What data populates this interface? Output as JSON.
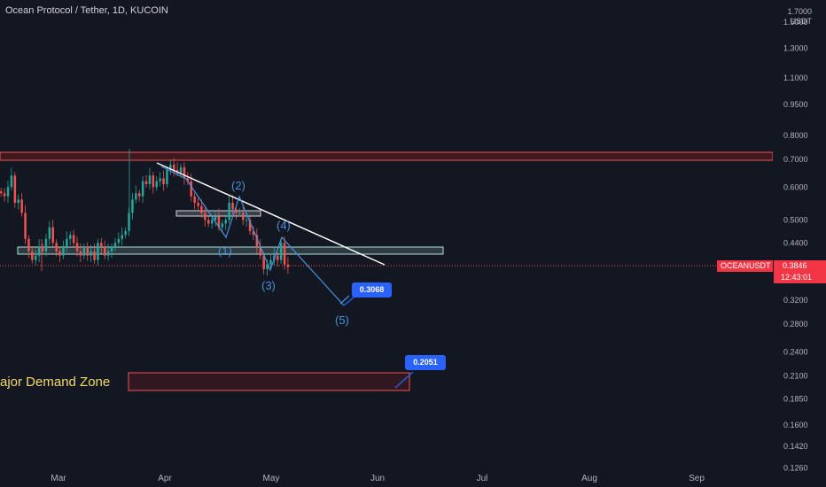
{
  "header": {
    "title": "Ocean Protocol / Tether, 1D, KUCOIN",
    "unit_top": "1.7000",
    "unit": "USDT"
  },
  "price_tag": {
    "symbol": "OCEANUSDT",
    "price": "0.3846",
    "countdown": "12:43:01"
  },
  "annotations": {
    "target_1": "0.3068",
    "target_2": "0.2051",
    "demand_zone": "ajor Demand Zone",
    "waves": [
      "(1)",
      "(2)",
      "(3)",
      "(4)",
      "(5)"
    ]
  },
  "chart_data": {
    "type": "candlestick",
    "title": "Ocean Protocol / Tether, 1D, KUCOIN",
    "y_scale": "log",
    "ylim": [
      0.126,
      1.7
    ],
    "y_ticks": [
      "1.5000",
      "1.3000",
      "1.1000",
      "0.9500",
      "0.8000",
      "0.7000",
      "0.6000",
      "0.5000",
      "0.4400",
      "0.3200",
      "0.2800",
      "0.2400",
      "0.2100",
      "0.1850",
      "0.1600",
      "0.1420",
      "0.1260"
    ],
    "x_ticks": [
      "Mar",
      "Apr",
      "May",
      "Jun",
      "Jul",
      "Aug",
      "Sep"
    ],
    "candles_close": [
      0.58,
      0.57,
      0.6,
      0.64,
      0.55,
      0.56,
      0.52,
      0.45,
      0.42,
      0.4,
      0.41,
      0.43,
      0.42,
      0.45,
      0.48,
      0.44,
      0.42,
      0.41,
      0.43,
      0.45,
      0.46,
      0.44,
      0.42,
      0.41,
      0.43,
      0.41,
      0.42,
      0.4,
      0.44,
      0.43,
      0.41,
      0.42,
      0.43,
      0.44,
      0.45,
      0.46,
      0.47,
      0.52,
      0.56,
      0.58,
      0.57,
      0.62,
      0.61,
      0.64,
      0.6,
      0.62,
      0.63,
      0.61,
      0.66,
      0.68,
      0.66,
      0.65,
      0.67,
      0.63,
      0.62,
      0.57,
      0.55,
      0.54,
      0.52,
      0.5,
      0.49,
      0.5,
      0.51,
      0.48,
      0.49,
      0.5,
      0.55,
      0.53,
      0.52,
      0.52,
      0.5,
      0.5,
      0.47,
      0.46,
      0.43,
      0.41,
      0.38,
      0.39,
      0.4,
      0.41,
      0.4,
      0.44,
      0.39,
      0.3846
    ],
    "resistance_zone": [
      0.69,
      0.72
    ],
    "support_zones": [
      [
        0.505,
        0.522
      ],
      [
        0.4,
        0.415
      ]
    ],
    "demand_zone": [
      0.195,
      0.212
    ],
    "current_price": 0.3846,
    "targets": [
      0.3068,
      0.2051
    ]
  },
  "colors": {
    "bg": "#131722",
    "up": "#26a69a",
    "down": "#ef5350",
    "accent": "#2962ff",
    "wave": "#4a90d9"
  }
}
